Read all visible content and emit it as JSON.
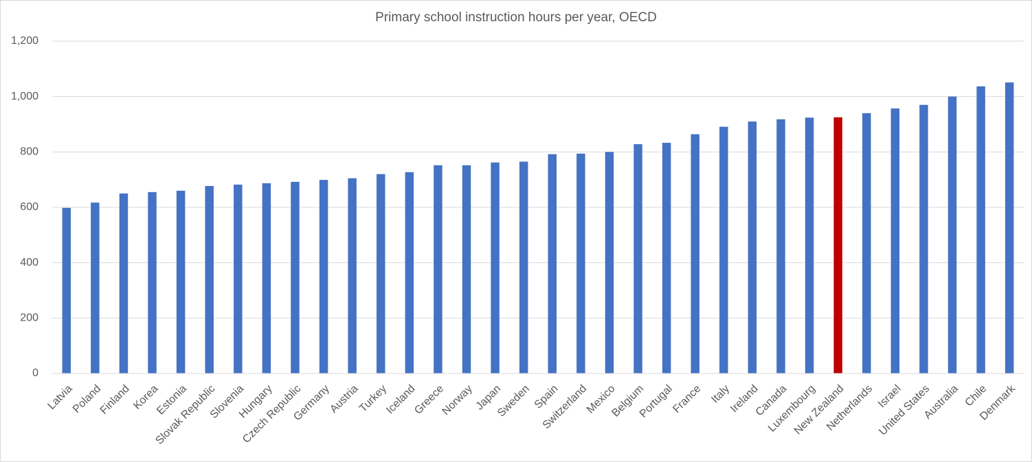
{
  "chart_data": {
    "type": "bar",
    "title": "Primary school instruction hours per year, OECD",
    "categories": [
      "Latvia",
      "Poland",
      "Finland",
      "Korea",
      "Estonia",
      "Slovak Republic",
      "Slovenia",
      "Hungary",
      "Czech Republic",
      "Germany",
      "Austria",
      "Turkey",
      "Iceland",
      "Greece",
      "Norway",
      "Japan",
      "Sweden",
      "Spain",
      "Switzerland",
      "Mexico",
      "Belgium",
      "Portugal",
      "France",
      "Italy",
      "Ireland",
      "Canada",
      "Luxembourg",
      "New Zealand",
      "Netherlands",
      "Israel",
      "United States",
      "Australia",
      "Chile",
      "Denmark"
    ],
    "values": [
      598,
      617,
      650,
      655,
      660,
      677,
      682,
      687,
      692,
      699,
      705,
      720,
      727,
      752,
      752,
      762,
      765,
      792,
      794,
      800,
      828,
      833,
      864,
      891,
      910,
      918,
      924,
      925,
      940,
      957,
      970,
      1000,
      1037,
      1051
    ],
    "colors": [
      "#4472c4",
      "#4472c4",
      "#4472c4",
      "#4472c4",
      "#4472c4",
      "#4472c4",
      "#4472c4",
      "#4472c4",
      "#4472c4",
      "#4472c4",
      "#4472c4",
      "#4472c4",
      "#4472c4",
      "#4472c4",
      "#4472c4",
      "#4472c4",
      "#4472c4",
      "#4472c4",
      "#4472c4",
      "#4472c4",
      "#4472c4",
      "#4472c4",
      "#4472c4",
      "#4472c4",
      "#4472c4",
      "#4472c4",
      "#4472c4",
      "#c00000",
      "#4472c4",
      "#4472c4",
      "#4472c4",
      "#4472c4",
      "#4472c4",
      "#4472c4"
    ],
    "ylim": [
      0,
      1200
    ],
    "yticks": [
      0,
      200,
      400,
      600,
      800,
      {
        "value": 1000,
        "label": "1,000"
      },
      {
        "value": 1200,
        "label": "1,200"
      }
    ],
    "grid": true
  }
}
